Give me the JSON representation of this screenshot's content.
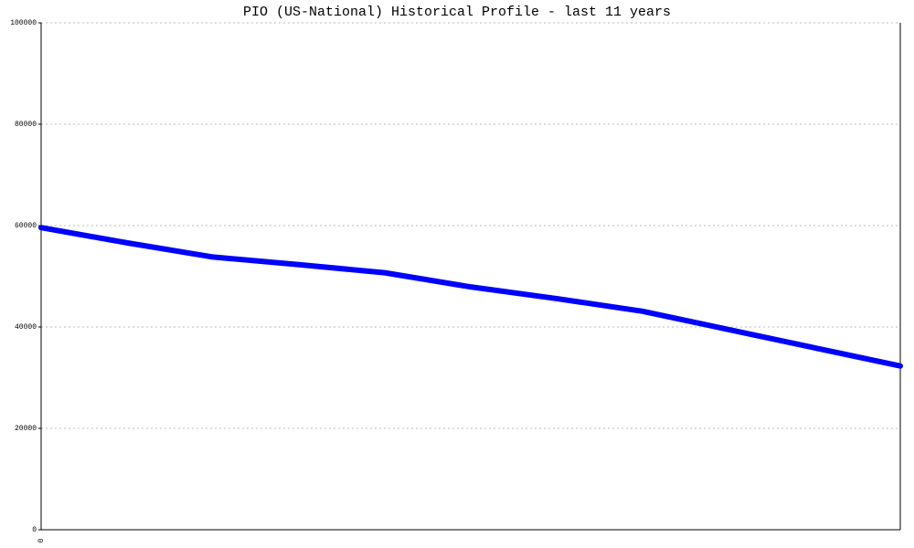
{
  "chart_data": {
    "type": "line",
    "title": "PIO (US-National) Historical Profile - last 11 years",
    "categories": [
      "0",
      null,
      null,
      null,
      null,
      null,
      null,
      null,
      null,
      null,
      null
    ],
    "series": [
      {
        "color": "#0000ff",
        "values": [
          59600,
          56600,
          53800,
          52300,
          50700,
          47900,
          45600,
          43100,
          39500,
          35900,
          32300
        ]
      }
    ],
    "ylim": [
      0,
      100000
    ],
    "yticks": [
      0,
      20000,
      40000,
      60000,
      80000,
      100000
    ],
    "grid": true
  }
}
